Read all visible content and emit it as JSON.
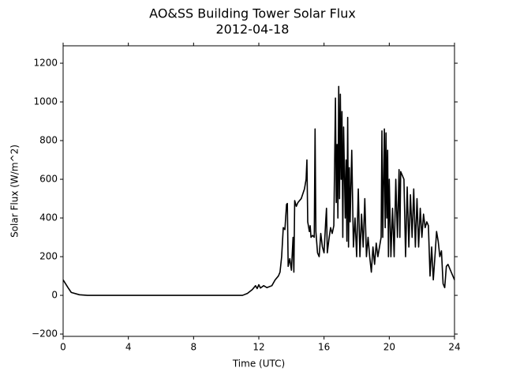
{
  "chart_data": {
    "type": "line",
    "title": "AO&SS Building Tower Solar Flux",
    "subtitle": "2012-04-18",
    "x_label": "Time (UTC)",
    "y_label": "Solar Flux (W/m^2)",
    "color": "#000000",
    "xlim": [
      0,
      24
    ],
    "ylim": [
      -212,
      1290
    ],
    "xticks": [
      0,
      4,
      8,
      12,
      16,
      20,
      24
    ],
    "yticks": [
      {
        "value": -200,
        "label": "−200"
      },
      0,
      200,
      400,
      600,
      800,
      1000,
      1200
    ],
    "x": [
      0,
      0.3,
      0.5,
      1,
      1.5,
      11,
      11.3,
      11.6,
      11.8,
      11.9,
      12.0,
      12.1,
      12.3,
      12.5,
      12.8,
      13,
      13.2,
      13.3,
      13.4,
      13.5,
      13.6,
      13.7,
      13.75,
      13.8,
      13.9,
      14.0,
      14.1,
      14.15,
      14.2,
      14.3,
      14.4,
      14.6,
      14.8,
      14.9,
      14.95,
      15.0,
      15.1,
      15.15,
      15.2,
      15.3,
      15.4,
      15.45,
      15.5,
      15.6,
      15.7,
      15.8,
      15.9,
      16.0,
      16.1,
      16.15,
      16.2,
      16.3,
      16.4,
      16.5,
      16.6,
      16.7,
      16.75,
      16.8,
      16.85,
      16.9,
      16.95,
      17.0,
      17.05,
      17.1,
      17.15,
      17.2,
      17.3,
      17.35,
      17.4,
      17.45,
      17.5,
      17.55,
      17.6,
      17.7,
      17.8,
      17.9,
      18.0,
      18.1,
      18.2,
      18.3,
      18.4,
      18.5,
      18.6,
      18.7,
      18.8,
      18.9,
      19.0,
      19.1,
      19.2,
      19.3,
      19.4,
      19.5,
      19.55,
      19.6,
      19.7,
      19.75,
      19.8,
      19.85,
      19.9,
      19.95,
      20.0,
      20.1,
      20.2,
      20.3,
      20.4,
      20.5,
      20.6,
      20.65,
      20.7,
      20.8,
      20.9,
      21.0,
      21.1,
      21.2,
      21.3,
      21.4,
      21.5,
      21.6,
      21.7,
      21.8,
      21.9,
      22.0,
      22.1,
      22.2,
      22.3,
      22.4,
      22.5,
      22.6,
      22.7,
      22.8,
      22.9,
      23.0,
      23.1,
      23.2,
      23.3,
      23.4,
      23.5,
      23.6,
      23.8,
      24.0
    ],
    "values": [
      80,
      40,
      15,
      3,
      0,
      0,
      10,
      30,
      50,
      35,
      55,
      38,
      50,
      40,
      50,
      80,
      100,
      120,
      200,
      350,
      340,
      470,
      475,
      150,
      190,
      130,
      300,
      120,
      490,
      460,
      480,
      500,
      550,
      600,
      700,
      380,
      330,
      360,
      300,
      310,
      300,
      860,
      330,
      220,
      200,
      320,
      250,
      220,
      380,
      450,
      220,
      290,
      350,
      320,
      360,
      1020,
      480,
      780,
      400,
      1080,
      500,
      1040,
      600,
      950,
      300,
      870,
      400,
      700,
      280,
      920,
      250,
      660,
      380,
      750,
      250,
      400,
      200,
      550,
      200,
      420,
      250,
      500,
      200,
      300,
      200,
      120,
      250,
      160,
      270,
      200,
      250,
      300,
      850,
      300,
      860,
      350,
      840,
      400,
      750,
      200,
      600,
      200,
      450,
      200,
      600,
      300,
      650,
      300,
      640,
      620,
      600,
      200,
      560,
      250,
      520,
      300,
      550,
      250,
      500,
      250,
      450,
      300,
      420,
      350,
      380,
      360,
      100,
      250,
      80,
      200,
      330,
      280,
      200,
      230,
      60,
      40,
      150,
      160,
      120,
      80
    ]
  }
}
